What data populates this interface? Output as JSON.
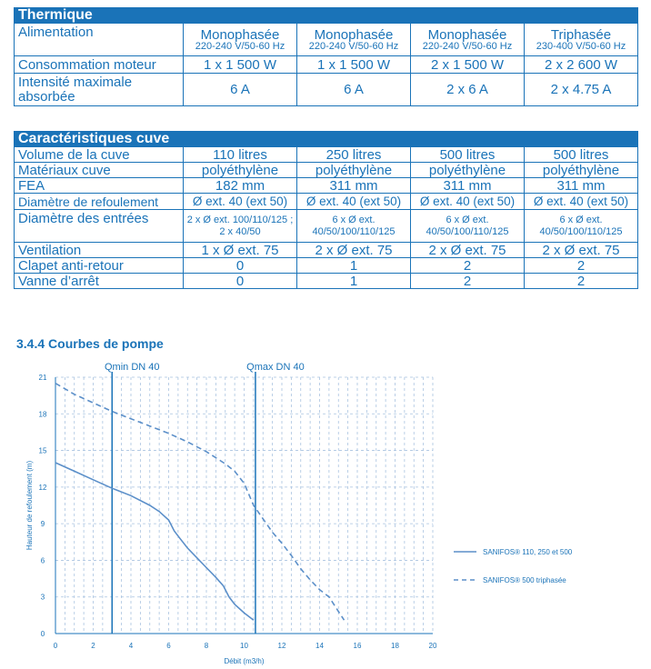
{
  "thermique": {
    "title": "Thermique",
    "rows": [
      {
        "label": "Alimentation",
        "cells": [
          {
            "main": "Monophasée",
            "sub": "220-240 V/50-60 Hz"
          },
          {
            "main": "Monophasée",
            "sub": "220-240 V/50-60 Hz"
          },
          {
            "main": "Monophasée",
            "sub": "220-240 V/50-60 Hz"
          },
          {
            "main": "Triphasée",
            "sub": "230-400 V/50-60 Hz"
          }
        ]
      },
      {
        "label": "Consommation moteur",
        "cells": [
          "1 x 1 500 W",
          "1 x 1 500 W",
          "2 x 1 500 W",
          "2 x 2 600 W"
        ]
      },
      {
        "label": "Intensité maximale absorbée",
        "cells": [
          "6 A",
          "6 A",
          "2 x 6 A",
          "2 x 4.75 A"
        ]
      }
    ]
  },
  "cuve": {
    "title": "Caractéristiques cuve",
    "rows": [
      {
        "label": "Volume de la cuve",
        "cells": [
          "110 litres",
          "250 litres",
          "500 litres",
          "500 litres"
        ]
      },
      {
        "label": "Matériaux cuve",
        "cells": [
          "polyéthylène",
          "polyéthylène",
          "polyéthylène",
          "polyéthylène"
        ]
      },
      {
        "label": "FEA",
        "cells": [
          "182 mm",
          "311 mm",
          "311 mm",
          "311 mm"
        ]
      },
      {
        "label": "Diamètre de refoulement",
        "cells": [
          "Ø ext. 40 (ext 50)",
          "Ø ext. 40 (ext 50)",
          "Ø ext. 40 (ext 50)",
          "Ø ext. 40 (ext 50)"
        ]
      },
      {
        "label": "Diamètre des entrées",
        "cells": [
          "2 x Ø ext. 100/110/125 ; 2 x 40/50",
          "6 x Ø ext. 40/50/100/110/125",
          "6 x Ø ext. 40/50/100/110/125",
          "6 x Ø ext. 40/50/100/110/125"
        ]
      },
      {
        "label": "Ventilation",
        "cells": [
          "1 x Ø ext. 75",
          "2 x Ø ext. 75",
          "2 x Ø ext. 75",
          "2 x Ø ext. 75"
        ]
      },
      {
        "label": "Clapet anti-retour",
        "cells": [
          "0",
          "1",
          "2",
          "2"
        ]
      },
      {
        "label": "Vanne d’arrêt",
        "cells": [
          "0",
          "1",
          "2",
          "2"
        ]
      }
    ]
  },
  "section_title": "3.4.4 Courbes de pompe",
  "colors": {
    "accent": "#1a73b8",
    "curve": "#5b8fc9",
    "grid": "#a9c3e0"
  },
  "chart_data": {
    "type": "line",
    "xlabel": "Débit (m3/h)",
    "ylabel": "Hauteur de refoulement (m)",
    "xlim": [
      0,
      20
    ],
    "ylim": [
      0,
      21
    ],
    "x_ticks": [
      0,
      2,
      4,
      6,
      8,
      10,
      12,
      14,
      16,
      18,
      20
    ],
    "y_ticks": [
      0,
      3,
      6,
      9,
      12,
      15,
      18,
      21
    ],
    "grid": true,
    "legend_position": "right",
    "reference_lines": [
      {
        "label": "Qmin DN 40",
        "x": 3
      },
      {
        "label": "Qmax DN 40",
        "x": 10.6
      }
    ],
    "series": [
      {
        "name": "SANIFOS® 110, 250 et 500",
        "style": "solid",
        "x": [
          0,
          1,
          2,
          3,
          4,
          5,
          5.5,
          6,
          6.3,
          6.6,
          7,
          7.5,
          8,
          8.5,
          8.9,
          9.2,
          9.5,
          10,
          10.5
        ],
        "y": [
          14,
          13.3,
          12.6,
          11.9,
          11.3,
          10.5,
          10,
          9.3,
          8.4,
          7.8,
          7,
          6.2,
          5.4,
          4.6,
          3.9,
          3,
          2.4,
          1.7,
          1.1
        ]
      },
      {
        "name": "SANIFOS® 500 triphasée",
        "style": "dashed",
        "x": [
          0,
          1,
          2,
          3,
          4,
          5,
          6,
          7,
          8,
          9,
          9.5,
          10,
          10.5,
          11,
          11.5,
          12,
          12.5,
          13,
          13.5,
          14,
          14.5,
          15,
          15.3
        ],
        "y": [
          20.5,
          19.6,
          18.9,
          18.2,
          17.6,
          17,
          16.4,
          15.7,
          14.9,
          13.9,
          13.3,
          12.3,
          10.5,
          9.4,
          8.3,
          7.4,
          6.4,
          5.3,
          4.4,
          3.6,
          3,
          1.8,
          1.1
        ]
      }
    ]
  }
}
